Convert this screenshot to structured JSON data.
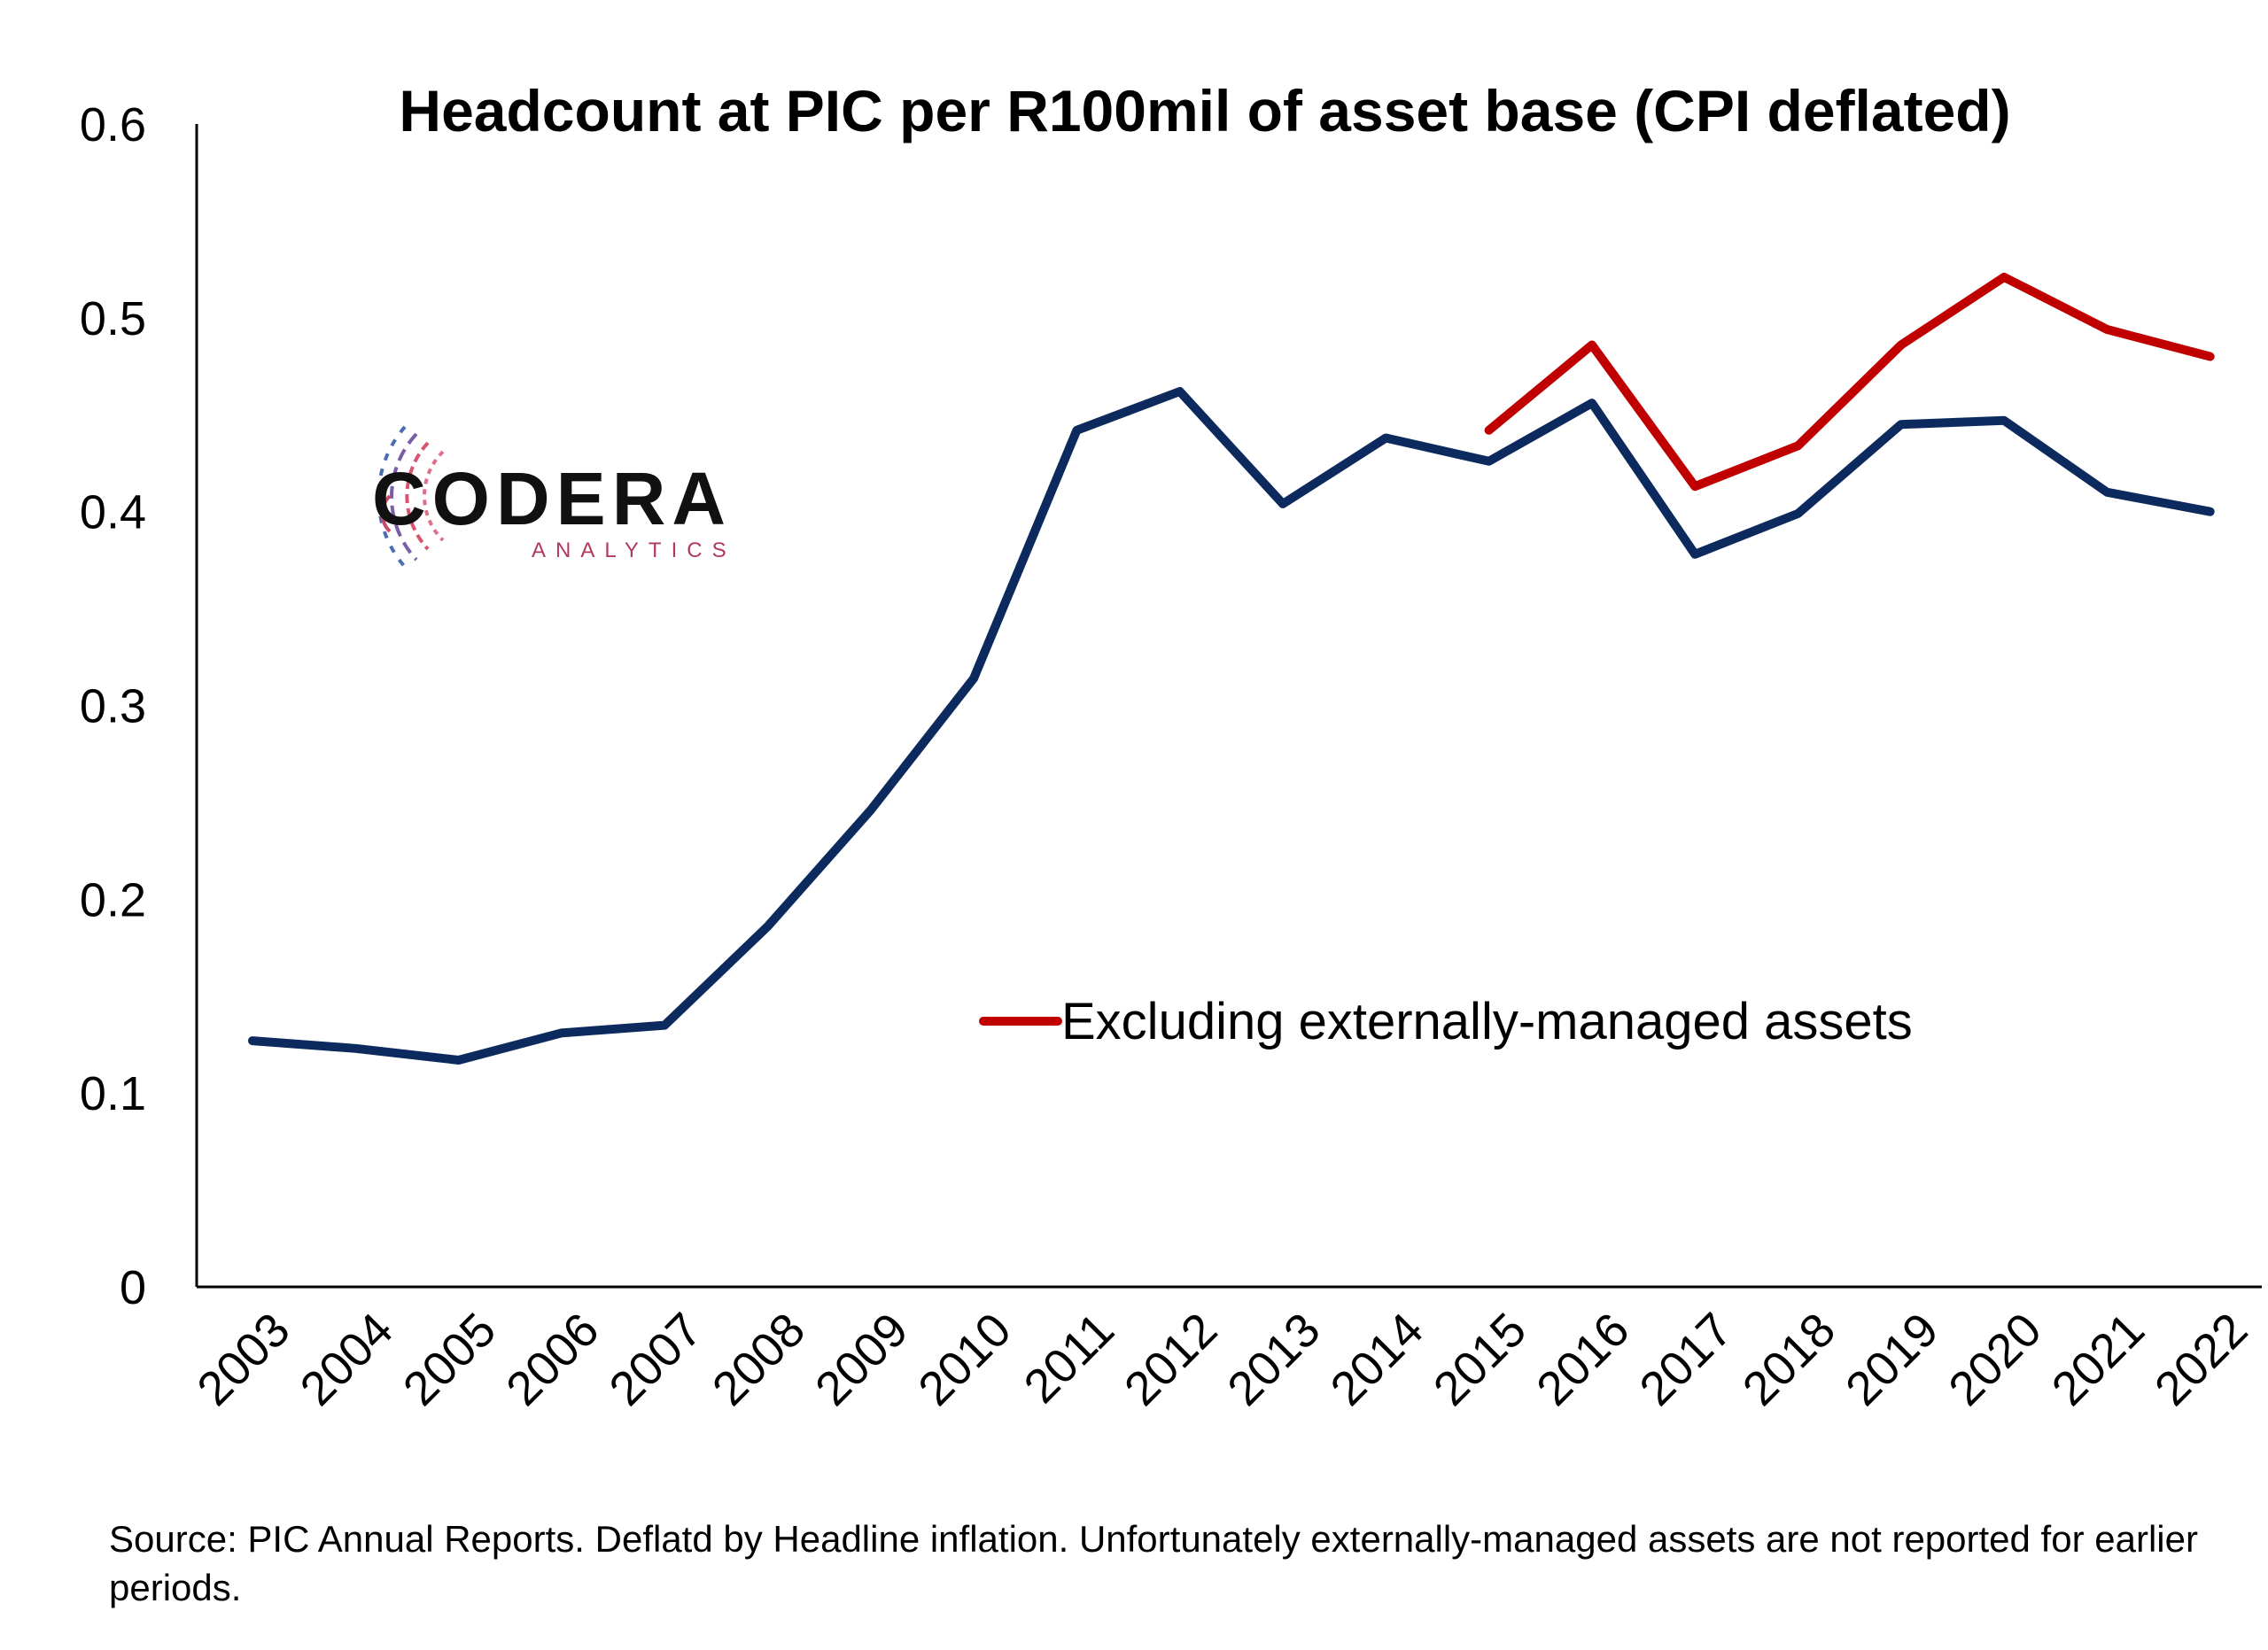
{
  "chart_data": {
    "type": "line",
    "title": "Headcount at PIC per R100mil of asset base (CPI deflated)",
    "xlabel": "",
    "ylabel": "",
    "categories": [
      "2003",
      "2004",
      "2005",
      "2006",
      "2007",
      "2008",
      "2009",
      "2010",
      "2011",
      "2012",
      "2013",
      "2014",
      "2015",
      "2016",
      "2017",
      "2018",
      "2019",
      "2020",
      "2021",
      "2022"
    ],
    "ylim": [
      0,
      0.6
    ],
    "yticks": [
      "0",
      "0.1",
      "0.2",
      "0.3",
      "0.4",
      "0.5",
      "0.6"
    ],
    "grid": false,
    "legend_position": "center-right",
    "series": [
      {
        "name": "",
        "color": "#0d2a5e",
        "values": [
          0.127,
          0.123,
          0.117,
          0.131,
          0.135,
          0.186,
          0.246,
          0.314,
          0.442,
          0.462,
          0.404,
          0.438,
          0.426,
          0.456,
          0.378,
          0.399,
          0.445,
          0.447,
          0.41,
          0.4
        ]
      },
      {
        "name": "Excluding externally-managed assets",
        "color": "#c00000",
        "values": [
          null,
          null,
          null,
          null,
          null,
          null,
          null,
          null,
          null,
          null,
          null,
          null,
          0.442,
          0.486,
          0.413,
          0.434,
          0.486,
          0.521,
          0.494,
          0.48
        ]
      }
    ]
  },
  "logo": {
    "main": "CODERA",
    "sub": "ANALYTICS"
  },
  "source_note": "Source: PIC Annual Reports. Deflatd by Headline inflation. Unfortunately externally-managed assets are not reported for earlier periods."
}
